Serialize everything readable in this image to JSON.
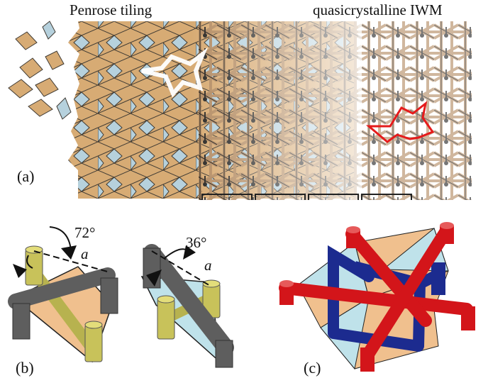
{
  "labels": {
    "penrose": "Penrose tiling",
    "iwm": "quasicrystalline  IWM",
    "panel_a": "(a)",
    "panel_b": "(b)",
    "panel_c": "(c)",
    "angle_72": "72°",
    "angle_36": "36°",
    "edge_a1": "a",
    "edge_a2": "a"
  },
  "colors": {
    "thick_rhomb": "#d7ab74",
    "thin_rhomb": "#b6d1dd",
    "strut": "#b38b62",
    "red": "#d3151a",
    "blue": "#1c2b8f",
    "gray": "#5e5e5e",
    "olive": "#b7b24f"
  }
}
